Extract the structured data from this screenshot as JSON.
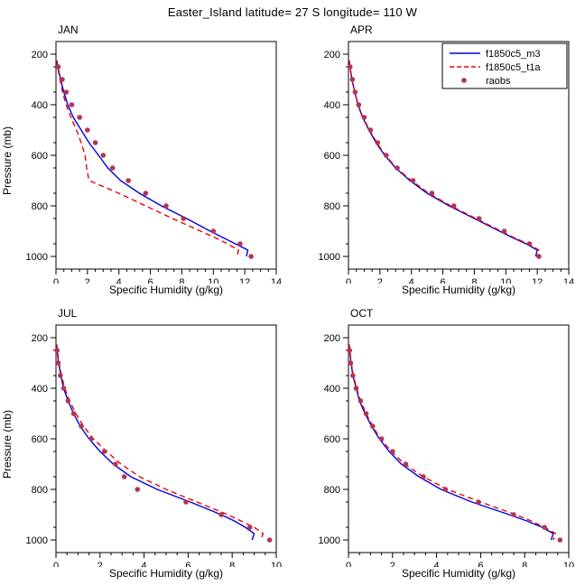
{
  "title": "Easter_Island  latitude= 27 S longitude= 110 W",
  "axes": {
    "xlabel": "Specific Humidity (g/kg)",
    "ylabel": "Pressure (mb)",
    "yticks": [
      200,
      400,
      600,
      800,
      1000
    ],
    "ylim": [
      150,
      1050
    ],
    "y_minor_step": 100
  },
  "legend": {
    "entries": [
      {
        "label": "f1850c5_m3",
        "style": "solid",
        "color": "#0000e0"
      },
      {
        "label": "f1850c5_t1a",
        "style": "dashed",
        "color": "#ee0000"
      },
      {
        "label": "raobs",
        "style": "dot",
        "color": "#b23556"
      }
    ]
  },
  "chart_data": [
    {
      "type": "line",
      "panel": "JAN",
      "xlim": [
        0,
        14
      ],
      "xticks": [
        0,
        2,
        4,
        6,
        8,
        10,
        12,
        14
      ],
      "x_minor_step": 0.5,
      "show_legend": false,
      "series": [
        {
          "name": "f1850c5_m3",
          "style": "solid",
          "color": "#0000e0",
          "pressure": [
            225,
            250,
            300,
            350,
            400,
            450,
            500,
            550,
            600,
            650,
            700,
            750,
            800,
            850,
            900,
            925,
            950,
            975,
            1000
          ],
          "values": [
            0.06,
            0.12,
            0.3,
            0.5,
            0.75,
            1.1,
            1.6,
            2.1,
            2.7,
            3.3,
            4.1,
            5.3,
            6.7,
            8.3,
            9.8,
            10.6,
            11.4,
            12.2,
            12.1
          ]
        },
        {
          "name": "f1850c5_t1a",
          "style": "dashed",
          "color": "#ee0000",
          "pressure": [
            225,
            250,
            300,
            350,
            400,
            450,
            500,
            550,
            600,
            650,
            700,
            750,
            800,
            850,
            900,
            925,
            950,
            975,
            1000
          ],
          "values": [
            0.05,
            0.1,
            0.25,
            0.42,
            0.65,
            0.95,
            1.3,
            1.6,
            1.85,
            1.95,
            2.1,
            4.0,
            5.7,
            7.4,
            9.2,
            10.1,
            10.9,
            11.6,
            11.5
          ]
        },
        {
          "name": "raobs",
          "style": "dot",
          "color": "#b23556",
          "pressure": [
            250,
            300,
            350,
            400,
            450,
            500,
            550,
            600,
            650,
            700,
            750,
            800,
            850,
            900,
            950,
            1000
          ],
          "values": [
            0.15,
            0.4,
            0.65,
            1.0,
            1.5,
            2.0,
            2.5,
            3.0,
            3.6,
            4.6,
            5.7,
            7.0,
            8.1,
            10.0,
            11.7,
            12.4
          ]
        }
      ]
    },
    {
      "type": "line",
      "panel": "APR",
      "xlim": [
        0,
        14
      ],
      "xticks": [
        0,
        2,
        4,
        6,
        8,
        10,
        12,
        14
      ],
      "x_minor_step": 0.5,
      "show_legend": true,
      "series": [
        {
          "name": "f1850c5_m3",
          "style": "solid",
          "color": "#0000e0",
          "pressure": [
            225,
            250,
            300,
            350,
            400,
            450,
            500,
            550,
            600,
            650,
            700,
            750,
            800,
            850,
            900,
            925,
            950,
            975,
            1000
          ],
          "values": [
            0.05,
            0.1,
            0.22,
            0.4,
            0.6,
            0.9,
            1.3,
            1.75,
            2.3,
            3.0,
            3.9,
            5.0,
            6.4,
            8.0,
            9.6,
            10.4,
            11.3,
            12.0,
            11.9
          ]
        },
        {
          "name": "f1850c5_t1a",
          "style": "dashed",
          "color": "#ee0000",
          "pressure": [
            225,
            250,
            300,
            350,
            400,
            450,
            500,
            550,
            600,
            650,
            700,
            750,
            800,
            850,
            900,
            925,
            950,
            975,
            1000
          ],
          "values": [
            0.05,
            0.1,
            0.23,
            0.4,
            0.62,
            0.92,
            1.35,
            1.8,
            2.35,
            3.05,
            4.0,
            5.1,
            6.5,
            8.1,
            9.7,
            10.5,
            11.4,
            12.1,
            12.0
          ]
        },
        {
          "name": "raobs",
          "style": "dot",
          "color": "#b23556",
          "pressure": [
            250,
            300,
            350,
            400,
            450,
            500,
            550,
            600,
            650,
            700,
            750,
            800,
            850,
            900,
            950,
            1000
          ],
          "values": [
            0.1,
            0.25,
            0.42,
            0.65,
            1.0,
            1.4,
            1.85,
            2.4,
            3.1,
            4.1,
            5.3,
            6.7,
            8.3,
            9.9,
            11.5,
            12.1
          ]
        }
      ]
    },
    {
      "type": "line",
      "panel": "JUL",
      "xlim": [
        0,
        10
      ],
      "xticks": [
        0,
        2,
        4,
        6,
        8,
        10
      ],
      "x_minor_step": 0.5,
      "show_legend": false,
      "series": [
        {
          "name": "f1850c5_m3",
          "style": "solid",
          "color": "#0000e0",
          "pressure": [
            225,
            250,
            300,
            350,
            400,
            450,
            500,
            550,
            600,
            650,
            700,
            750,
            800,
            850,
            900,
            925,
            950,
            975,
            1000
          ],
          "values": [
            0.03,
            0.05,
            0.12,
            0.22,
            0.35,
            0.55,
            0.8,
            1.1,
            1.5,
            2.0,
            2.6,
            3.4,
            4.6,
            6.1,
            7.5,
            8.1,
            8.6,
            9.0,
            8.9
          ]
        },
        {
          "name": "f1850c5_t1a",
          "style": "dashed",
          "color": "#ee0000",
          "pressure": [
            225,
            250,
            300,
            350,
            400,
            450,
            500,
            550,
            600,
            650,
            700,
            750,
            800,
            850,
            900,
            925,
            950,
            975,
            1000
          ],
          "values": [
            0.03,
            0.06,
            0.14,
            0.25,
            0.4,
            0.62,
            0.9,
            1.25,
            1.7,
            2.3,
            2.95,
            3.8,
            5.0,
            6.4,
            7.8,
            8.4,
            9.0,
            9.4,
            9.3
          ]
        },
        {
          "name": "raobs",
          "style": "dot",
          "color": "#b23556",
          "pressure": [
            250,
            300,
            350,
            400,
            450,
            500,
            550,
            600,
            650,
            700,
            750,
            800,
            850,
            900,
            950,
            1000
          ],
          "values": [
            0.05,
            0.1,
            0.2,
            0.35,
            0.55,
            0.8,
            1.15,
            1.6,
            2.2,
            2.7,
            3.1,
            3.7,
            5.9,
            7.5,
            8.8,
            9.7
          ]
        }
      ]
    },
    {
      "type": "line",
      "panel": "OCT",
      "xlim": [
        0,
        10
      ],
      "xticks": [
        0,
        2,
        4,
        6,
        8,
        10
      ],
      "x_minor_step": 0.5,
      "show_legend": false,
      "series": [
        {
          "name": "f1850c5_m3",
          "style": "solid",
          "color": "#0000e0",
          "pressure": [
            225,
            250,
            300,
            350,
            400,
            450,
            500,
            550,
            600,
            650,
            700,
            750,
            800,
            850,
            900,
            925,
            950,
            975,
            1000
          ],
          "values": [
            0.03,
            0.05,
            0.12,
            0.2,
            0.35,
            0.5,
            0.75,
            1.05,
            1.4,
            1.85,
            2.4,
            3.2,
            4.2,
            5.6,
            7.3,
            8.1,
            8.8,
            9.3,
            9.2
          ]
        },
        {
          "name": "f1850c5_t1a",
          "style": "dashed",
          "color": "#ee0000",
          "pressure": [
            225,
            250,
            300,
            350,
            400,
            450,
            500,
            550,
            600,
            650,
            700,
            750,
            800,
            850,
            900,
            925,
            950,
            975,
            1000
          ],
          "values": [
            0.03,
            0.06,
            0.13,
            0.22,
            0.37,
            0.55,
            0.8,
            1.1,
            1.45,
            1.95,
            2.55,
            3.4,
            4.5,
            6.0,
            7.6,
            8.3,
            8.9,
            9.4,
            9.3
          ]
        },
        {
          "name": "raobs",
          "style": "dot",
          "color": "#b23556",
          "pressure": [
            250,
            300,
            350,
            400,
            450,
            500,
            550,
            600,
            650,
            700,
            750,
            800,
            850,
            900,
            950,
            1000
          ],
          "values": [
            0.05,
            0.1,
            0.2,
            0.35,
            0.55,
            0.8,
            1.1,
            1.5,
            2.0,
            2.6,
            3.4,
            4.4,
            5.9,
            7.5,
            8.9,
            9.6
          ]
        }
      ]
    }
  ]
}
